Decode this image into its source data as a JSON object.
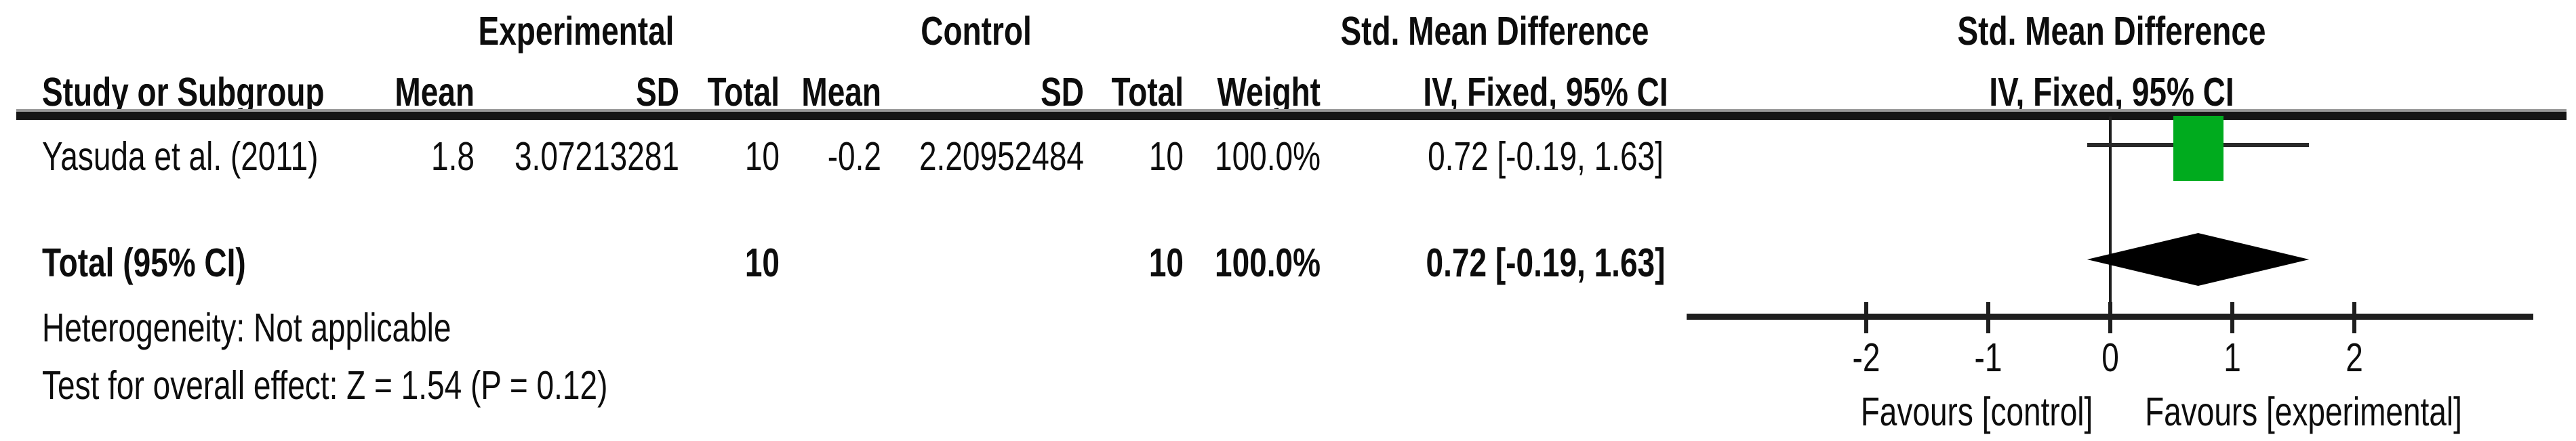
{
  "table": {
    "group_headers": {
      "experimental": "Experimental",
      "control": "Control",
      "smd_text": "Std. Mean Difference",
      "smd_plot": "Std. Mean Difference"
    },
    "col_headers": {
      "study": "Study or Subgroup",
      "mean_exp": "Mean",
      "sd_exp": "SD",
      "total_exp": "Total",
      "mean_ctrl": "Mean",
      "sd_ctrl": "SD",
      "total_ctrl": "Total",
      "weight": "Weight",
      "ci_text": "IV, Fixed, 95% CI",
      "ci_plot": "IV, Fixed, 95% CI"
    },
    "rows": [
      {
        "study": "Yasuda et al. (2011)",
        "mean_exp": "1.8",
        "sd_exp": "3.07213281",
        "total_exp": "10",
        "mean_ctrl": "-0.2",
        "sd_ctrl": "2.20952484",
        "total_ctrl": "10",
        "weight": "100.0%",
        "ci": "0.72 [-0.19, 1.63]"
      }
    ],
    "total_row": {
      "label": "Total (95% CI)",
      "total_exp": "10",
      "total_ctrl": "10",
      "weight": "100.0%",
      "ci": "0.72 [-0.19, 1.63]"
    },
    "footer": {
      "heterogeneity": "Heterogeneity: Not applicable",
      "overall_effect": "Test for overall effect: Z = 1.54 (P = 0.12)"
    }
  },
  "chart_data": {
    "type": "forest",
    "effect_measure": "Std. Mean Difference",
    "model": "IV, Fixed, 95% CI",
    "axis_ticks": [
      -2,
      -1,
      0,
      1,
      2
    ],
    "axis_range": [
      -3.47,
      3.47
    ],
    "favours_left": "Favours [control]",
    "favours_right": "Favours [experimental]",
    "studies": [
      {
        "name": "Yasuda et al. (2011)",
        "estimate": 0.72,
        "ci_low": -0.19,
        "ci_high": 1.63,
        "weight_pct": 100.0,
        "marker_color": "#00ab1e"
      }
    ],
    "total": {
      "label": "Total (95% CI)",
      "estimate": 0.72,
      "ci_low": -0.19,
      "ci_high": 1.63,
      "diamond_color": "#000000"
    },
    "heterogeneity": "Not applicable",
    "overall_effect_z": 1.54,
    "overall_effect_p": 0.12
  },
  "colors": {
    "line": "#1e1e1e",
    "text": "#0d0d0d",
    "marker_green": "#00ab1e",
    "diamond_black": "#000000",
    "background": "#ffffff"
  }
}
